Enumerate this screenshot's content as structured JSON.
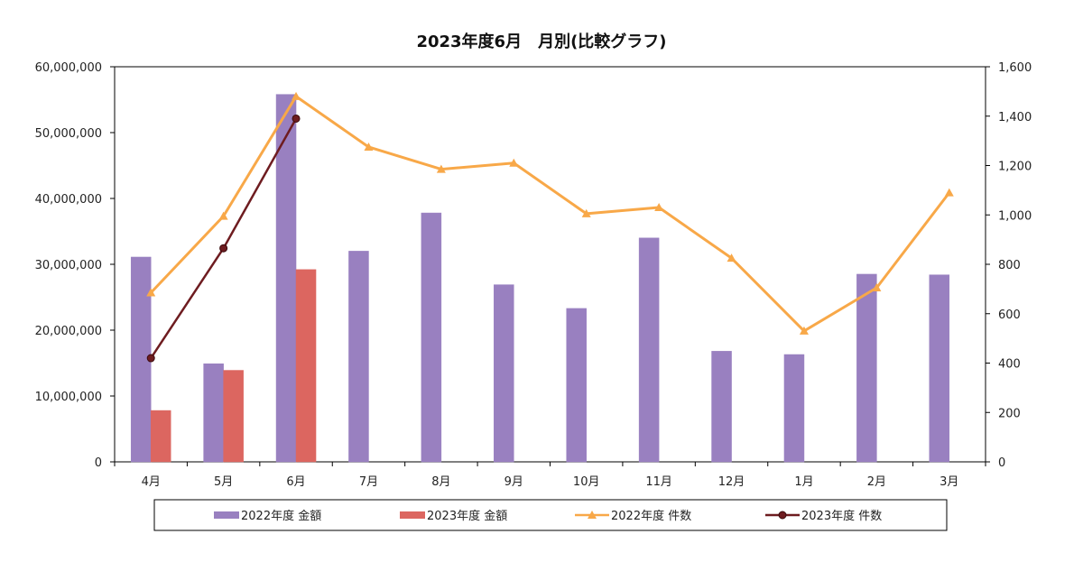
{
  "chart_data": {
    "type": "bar",
    "title": "2023年度6月　月別(比較グラフ)",
    "categories": [
      "4月",
      "5月",
      "6月",
      "7月",
      "8月",
      "9月",
      "10月",
      "11月",
      "12月",
      "1月",
      "2月",
      "3月"
    ],
    "y_left": {
      "min": 0,
      "max": 60000000,
      "ticks": [
        0,
        10000000,
        20000000,
        30000000,
        40000000,
        50000000,
        60000000
      ],
      "tick_labels": [
        "0",
        "10,000,000",
        "20,000,000",
        "30,000,000",
        "40,000,000",
        "50,000,000",
        "60,000,000"
      ]
    },
    "y_right": {
      "min": 0,
      "max": 1600,
      "ticks": [
        0,
        200,
        400,
        600,
        800,
        1000,
        1200,
        1400,
        1600
      ],
      "tick_labels": [
        "0",
        "200",
        "400",
        "600",
        "800",
        "1,000",
        "1,200",
        "1,400",
        "1,600"
      ]
    },
    "series": [
      {
        "name": "2022年度 金額",
        "kind": "bar",
        "axis": "left",
        "color": "#9980C0",
        "values": [
          31100000,
          14900000,
          55800000,
          32000000,
          37800000,
          26900000,
          23300000,
          34000000,
          16800000,
          16300000,
          28500000,
          28400000
        ]
      },
      {
        "name": "2023年度 金額",
        "kind": "bar",
        "axis": "left",
        "color": "#DC6660",
        "values": [
          7800000,
          13900000,
          29200000,
          null,
          null,
          null,
          null,
          null,
          null,
          null,
          null,
          null
        ]
      },
      {
        "name": "2022年度 件数",
        "kind": "line",
        "axis": "right",
        "color": "#F8A848",
        "marker": "triangle",
        "values": [
          685,
          995,
          1480,
          1275,
          1185,
          1210,
          1005,
          1030,
          825,
          530,
          705,
          1090
        ]
      },
      {
        "name": "2023年度 件数",
        "kind": "line",
        "axis": "right",
        "color": "#6E1C20",
        "marker": "circle",
        "values": [
          420,
          865,
          1390,
          null,
          null,
          null,
          null,
          null,
          null,
          null,
          null,
          null
        ]
      }
    ],
    "legend_position": "bottom",
    "grid": false
  }
}
